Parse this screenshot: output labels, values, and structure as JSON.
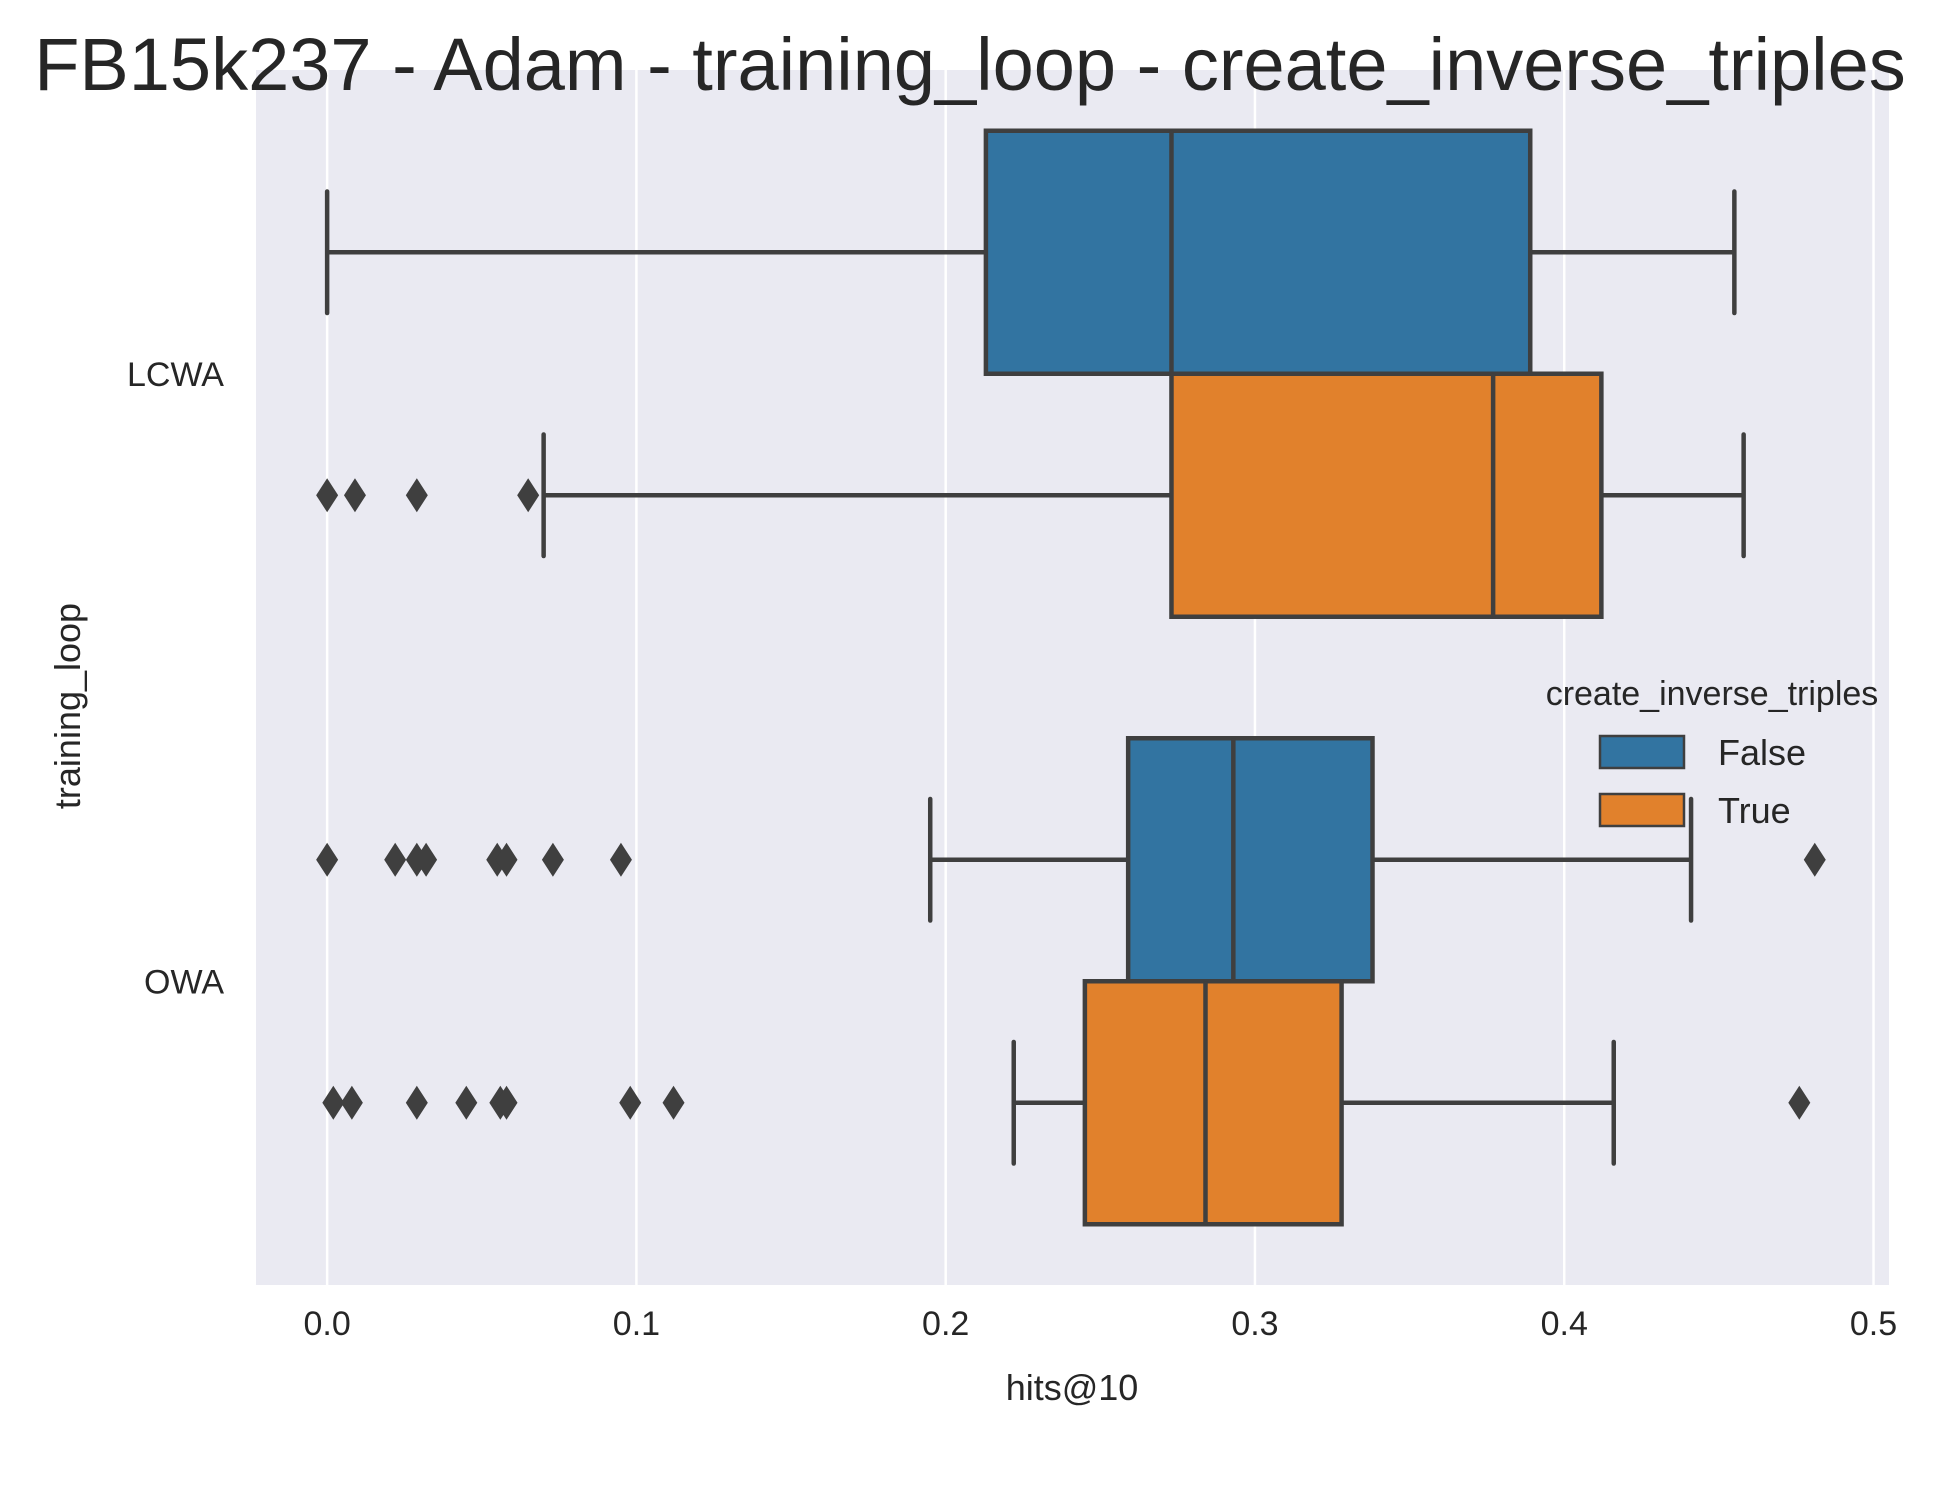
{
  "chart_data": {
    "type": "box",
    "orientation": "horizontal",
    "title": "FB15k237 - Adam - training_loop - create_inverse_triples",
    "xlabel": "hits@10",
    "ylabel": "training_loop",
    "xlim": [
      -0.023,
      0.505
    ],
    "x_ticks": [
      "0.0",
      "0.1",
      "0.2",
      "0.3",
      "0.4",
      "0.5"
    ],
    "categories": [
      "LCWA",
      "OWA"
    ],
    "legend": {
      "title": "create_inverse_triples",
      "position": "center-right"
    },
    "grid": true,
    "colors": {
      "False": "#3274a1",
      "True": "#e1812c",
      "edge": "#3f3f3f",
      "background": "#eaeaf2",
      "grid": "#ffffff"
    },
    "series": [
      {
        "name": "False",
        "boxes": [
          {
            "category": "LCWA",
            "whisker_low": 0.0,
            "q1": 0.213,
            "median": 0.273,
            "q3": 0.389,
            "whisker_high": 0.455,
            "outliers": []
          },
          {
            "category": "OWA",
            "whisker_low": 0.195,
            "q1": 0.259,
            "median": 0.293,
            "q3": 0.338,
            "whisker_high": 0.441,
            "outliers": [
              0.0,
              0.022,
              0.029,
              0.032,
              0.055,
              0.058,
              0.073,
              0.095,
              0.481
            ]
          }
        ]
      },
      {
        "name": "True",
        "boxes": [
          {
            "category": "LCWA",
            "whisker_low": 0.07,
            "q1": 0.273,
            "median": 0.377,
            "q3": 0.412,
            "whisker_high": 0.458,
            "outliers": [
              0.0,
              0.009,
              0.029,
              0.065
            ]
          },
          {
            "category": "OWA",
            "whisker_low": 0.222,
            "q1": 0.245,
            "median": 0.284,
            "q3": 0.328,
            "whisker_high": 0.416,
            "outliers": [
              0.002,
              0.008,
              0.029,
              0.045,
              0.056,
              0.058,
              0.098,
              0.112,
              0.476
            ]
          }
        ]
      }
    ]
  }
}
